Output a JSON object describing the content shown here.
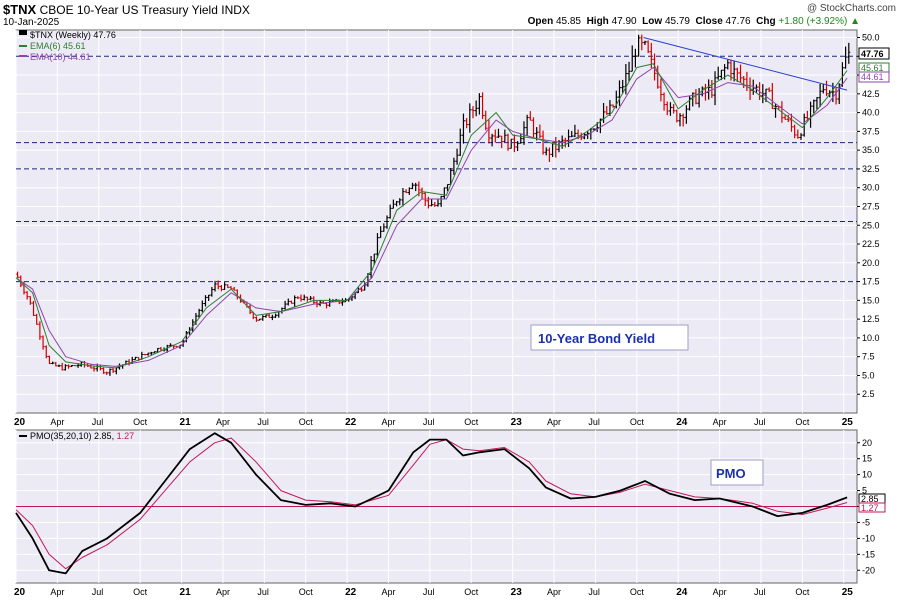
{
  "header": {
    "symbol": "$TNX",
    "name": "CBOE 10-Year US Treasury Yield",
    "exchange": "INDX",
    "date": "10-Jan-2025",
    "watermark": "@ StockCharts.com",
    "open_label": "Open",
    "open": "45.85",
    "high_label": "High",
    "high": "47.90",
    "low_label": "Low",
    "low": "45.79",
    "close_label": "Close",
    "close": "47.76",
    "chg_label": "Chg",
    "chg": "+1.80 (+3.92%)",
    "chg_arrow": "▲"
  },
  "legend": {
    "price": "$TNX (Weekly) 47.76",
    "ema6": "EMA(6) 45.61",
    "ema10": "EMA(10) 44.61",
    "pmo_name": "PMO(35,20,10)",
    "pmo_value": "2.85",
    "pmo_signal": "1.27"
  },
  "annotations": {
    "price_box": "10-Year Bond Yield",
    "pmo_box": "PMO"
  },
  "last_labels": {
    "close": "47.76",
    "ema6": "45.61",
    "ema10": "44.61",
    "pmo": "2.85",
    "signal": "1.27"
  },
  "colors": {
    "background": "#eceaf4",
    "up_bar": "#000000",
    "down_bar": "#d40000",
    "ema6": "#2e7d32",
    "ema10": "#8e44ad",
    "trendline": "#2a3fd0",
    "hline": "#1a237e",
    "pmo": "#000000",
    "signal": "#c2185b",
    "zero": "#c2185b"
  },
  "chart_data": [
    {
      "type": "line",
      "title": "$TNX (Weekly)",
      "ylim": [
        0,
        51
      ],
      "yticks": [
        "2.5",
        "5.0",
        "7.5",
        "10.0",
        "12.5",
        "15.0",
        "17.5",
        "20.0",
        "22.5",
        "25.0",
        "27.5",
        "30.0",
        "32.5",
        "35.0",
        "37.5",
        "40.0",
        "42.5",
        "45.0",
        "47.5",
        "50.0"
      ],
      "xticks": [
        "20",
        "Apr",
        "Jul",
        "Oct",
        "21",
        "Apr",
        "Jul",
        "Oct",
        "22",
        "Apr",
        "Jul",
        "Oct",
        "23",
        "Apr",
        "Jul",
        "Oct",
        "24",
        "Apr",
        "Jul",
        "Oct",
        "25"
      ],
      "horizontal_lines": [
        47.5,
        36.0,
        32.5,
        25.5,
        17.5
      ],
      "trendline": [
        [
          2023.79,
          50.0
        ],
        [
          2025.02,
          43.0
        ]
      ],
      "series": [
        {
          "name": "$TNX",
          "x": [
            2020.0,
            2020.08,
            2020.15,
            2020.2,
            2020.28,
            2020.4,
            2020.55,
            2020.7,
            2020.85,
            2021.0,
            2021.1,
            2021.2,
            2021.3,
            2021.45,
            2021.55,
            2021.7,
            2021.85,
            2022.0,
            2022.1,
            2022.2,
            2022.3,
            2022.4,
            2022.48,
            2022.55,
            2022.62,
            2022.7,
            2022.8,
            2022.85,
            2022.92,
            2023.0,
            2023.1,
            2023.2,
            2023.3,
            2023.4,
            2023.5,
            2023.6,
            2023.7,
            2023.75,
            2023.8,
            2023.88,
            2023.95,
            2024.0,
            2024.1,
            2024.2,
            2024.3,
            2024.35,
            2024.45,
            2024.55,
            2024.65,
            2024.72,
            2024.8,
            2024.88,
            2024.95,
            2025.02
          ],
          "values": [
            18.5,
            15.0,
            10.0,
            6.5,
            6.0,
            6.5,
            5.5,
            7.0,
            8.5,
            9.2,
            13.5,
            17.0,
            16.5,
            12.5,
            13.0,
            15.5,
            14.5,
            15.0,
            17.0,
            24.0,
            28.5,
            31.0,
            28.0,
            27.5,
            31.5,
            38.0,
            42.0,
            37.5,
            37.0,
            35.5,
            39.0,
            34.5,
            36.0,
            37.0,
            38.5,
            40.5,
            45.5,
            49.0,
            48.5,
            44.0,
            40.0,
            39.5,
            42.0,
            43.0,
            46.5,
            45.0,
            43.5,
            42.0,
            39.0,
            37.0,
            40.0,
            43.5,
            42.5,
            47.76
          ]
        },
        {
          "name": "EMA(6)",
          "x": [
            2020.0,
            2020.1,
            2020.2,
            2020.3,
            2020.45,
            2020.6,
            2020.8,
            2021.0,
            2021.15,
            2021.3,
            2021.45,
            2021.6,
            2021.8,
            2022.0,
            2022.15,
            2022.3,
            2022.45,
            2022.6,
            2022.75,
            2022.9,
            2023.0,
            2023.15,
            2023.3,
            2023.45,
            2023.6,
            2023.75,
            2023.85,
            2024.0,
            2024.15,
            2024.3,
            2024.45,
            2024.6,
            2024.75,
            2024.9,
            2025.02
          ],
          "values": [
            18.0,
            16.0,
            9.0,
            6.8,
            6.3,
            6.0,
            7.5,
            9.5,
            14.0,
            16.5,
            13.0,
            13.5,
            15.0,
            15.0,
            19.0,
            27.0,
            29.5,
            29.0,
            37.0,
            40.0,
            37.0,
            36.5,
            35.5,
            37.5,
            40.0,
            46.0,
            46.5,
            40.5,
            43.0,
            45.0,
            43.0,
            40.5,
            38.0,
            42.0,
            45.61
          ]
        },
        {
          "name": "EMA(10)",
          "x": [
            2020.0,
            2020.1,
            2020.2,
            2020.3,
            2020.45,
            2020.6,
            2020.8,
            2021.0,
            2021.15,
            2021.3,
            2021.45,
            2021.6,
            2021.8,
            2022.0,
            2022.15,
            2022.3,
            2022.45,
            2022.6,
            2022.75,
            2022.9,
            2023.0,
            2023.15,
            2023.3,
            2023.45,
            2023.6,
            2023.75,
            2023.85,
            2024.0,
            2024.15,
            2024.3,
            2024.45,
            2024.6,
            2024.75,
            2024.9,
            2025.02
          ],
          "values": [
            18.0,
            16.5,
            11.0,
            7.5,
            6.5,
            6.2,
            7.0,
            9.0,
            13.0,
            16.0,
            14.0,
            13.5,
            14.5,
            15.0,
            18.0,
            25.0,
            28.5,
            28.5,
            35.0,
            39.0,
            37.5,
            36.5,
            36.0,
            37.0,
            39.0,
            44.5,
            46.0,
            42.0,
            42.5,
            44.0,
            43.5,
            41.0,
            38.5,
            41.0,
            44.61
          ]
        }
      ]
    },
    {
      "type": "line",
      "title": "PMO(35,20,10)",
      "ylim": [
        -24,
        24
      ],
      "yticks": [
        "-20",
        "-15",
        "-10",
        "-5",
        "0",
        "5",
        "10",
        "15",
        "20"
      ],
      "xticks": [
        "20",
        "Apr",
        "Jul",
        "Oct",
        "21",
        "Apr",
        "Jul",
        "Oct",
        "22",
        "Apr",
        "Jul",
        "Oct",
        "23",
        "Apr",
        "Jul",
        "Oct",
        "24",
        "Apr",
        "Jul",
        "Oct",
        "25"
      ],
      "horizontal_lines": [
        0
      ],
      "series": [
        {
          "name": "PMO",
          "x": [
            2020.0,
            2020.1,
            2020.2,
            2020.3,
            2020.4,
            2020.55,
            2020.75,
            2020.9,
            2021.05,
            2021.2,
            2021.3,
            2021.45,
            2021.6,
            2021.75,
            2021.9,
            2022.05,
            2022.25,
            2022.4,
            2022.5,
            2022.6,
            2022.7,
            2022.8,
            2022.95,
            2023.1,
            2023.2,
            2023.35,
            2023.5,
            2023.65,
            2023.8,
            2023.95,
            2024.1,
            2024.25,
            2024.45,
            2024.6,
            2024.75,
            2024.9,
            2025.02
          ],
          "values": [
            -2.0,
            -10.0,
            -20.0,
            -21.0,
            -14.0,
            -10.0,
            -2.0,
            8.0,
            18.0,
            23.0,
            20.0,
            10.0,
            2.0,
            0.5,
            1.0,
            0.0,
            5.0,
            17.0,
            21.0,
            21.0,
            16.0,
            17.0,
            18.0,
            12.0,
            6.0,
            2.5,
            3.0,
            5.0,
            8.0,
            4.0,
            2.0,
            2.5,
            0.0,
            -3.0,
            -2.0,
            0.5,
            2.85
          ]
        },
        {
          "name": "Signal",
          "x": [
            2020.0,
            2020.1,
            2020.2,
            2020.3,
            2020.4,
            2020.55,
            2020.75,
            2020.9,
            2021.05,
            2021.2,
            2021.3,
            2021.45,
            2021.6,
            2021.75,
            2021.9,
            2022.05,
            2022.25,
            2022.4,
            2022.5,
            2022.6,
            2022.7,
            2022.8,
            2022.95,
            2023.1,
            2023.2,
            2023.35,
            2023.5,
            2023.65,
            2023.8,
            2023.95,
            2024.1,
            2024.25,
            2024.45,
            2024.6,
            2024.75,
            2024.9,
            2025.02
          ],
          "values": [
            -1.0,
            -6.0,
            -15.0,
            -19.5,
            -16.0,
            -12.0,
            -4.0,
            5.0,
            14.0,
            20.0,
            21.5,
            14.0,
            5.0,
            2.0,
            1.5,
            0.5,
            3.5,
            13.0,
            19.5,
            21.0,
            18.0,
            17.5,
            18.5,
            14.0,
            8.0,
            4.0,
            3.0,
            4.5,
            7.0,
            5.0,
            3.0,
            2.5,
            1.0,
            -1.5,
            -2.5,
            -0.5,
            1.27
          ]
        }
      ]
    }
  ]
}
